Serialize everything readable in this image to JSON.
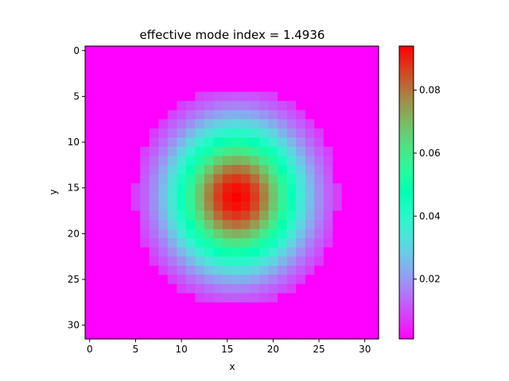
{
  "chart_data": {
    "type": "heatmap",
    "title": "effective mode index = 1.4936",
    "xlabel": "x",
    "ylabel": "y",
    "grid_size": [
      32,
      32
    ],
    "xlim": [
      -0.5,
      31.5
    ],
    "ylim": [
      31.5,
      -0.5
    ],
    "x_ticks": [
      0,
      5,
      10,
      15,
      20,
      25,
      30
    ],
    "y_ticks": [
      0,
      5,
      10,
      15,
      20,
      25,
      30
    ],
    "colormap": "rainbow",
    "colorbar": {
      "min": 0.001,
      "max": 0.094,
      "ticks": [
        0.02,
        0.04,
        0.06,
        0.08
      ]
    },
    "field": {
      "form": "gaussian",
      "center_x": 16.0,
      "center_y": 16.0,
      "sigma_x": 5.0,
      "sigma_y": 5.4,
      "peak": 0.094,
      "background": 0.001,
      "cutoff": 0.008
    },
    "legend": "none",
    "grid": false
  }
}
